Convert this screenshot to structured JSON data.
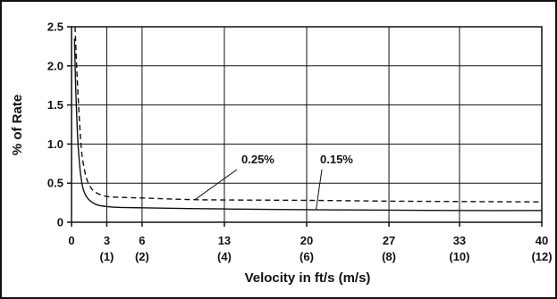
{
  "chart_data": {
    "type": "line",
    "title": "",
    "xlabel": "Velocity in ft/s (m/s)",
    "ylabel": "% of Rate",
    "xlim": [
      0,
      40
    ],
    "ylim": [
      0,
      2.5
    ],
    "grid": true,
    "x_ticks": [
      {
        "value": 0,
        "label": "0",
        "sublabel": ""
      },
      {
        "value": 3,
        "label": "3",
        "sublabel": "(1)"
      },
      {
        "value": 6,
        "label": "6",
        "sublabel": "(2)"
      },
      {
        "value": 13,
        "label": "13",
        "sublabel": "(4)"
      },
      {
        "value": 20,
        "label": "20",
        "sublabel": "(6)"
      },
      {
        "value": 27,
        "label": "27",
        "sublabel": "(8)"
      },
      {
        "value": 33,
        "label": "33",
        "sublabel": "(10)"
      },
      {
        "value": 40,
        "label": "40",
        "sublabel": "(12)"
      }
    ],
    "y_ticks": [
      {
        "value": 0,
        "label": "0"
      },
      {
        "value": 0.5,
        "label": "0.5"
      },
      {
        "value": 1.0,
        "label": "1.0"
      },
      {
        "value": 1.5,
        "label": "1.5"
      },
      {
        "value": 2.0,
        "label": "2.0"
      },
      {
        "value": 2.5,
        "label": "2.5"
      }
    ],
    "series": [
      {
        "name": "0.15%",
        "style": "solid",
        "color": "#111111",
        "x": [
          0.25,
          0.35,
          0.5,
          0.65,
          0.8,
          1.0,
          1.3,
          1.7,
          2.2,
          3,
          4,
          6,
          10,
          13,
          20,
          27,
          33,
          40
        ],
        "y": [
          2.35,
          1.75,
          1.15,
          0.8,
          0.58,
          0.42,
          0.32,
          0.26,
          0.22,
          0.2,
          0.19,
          0.185,
          0.175,
          0.17,
          0.16,
          0.155,
          0.15,
          0.15
        ]
      },
      {
        "name": "0.25%",
        "style": "dashed",
        "color": "#111111",
        "x": [
          0.3,
          0.45,
          0.6,
          0.8,
          1.0,
          1.3,
          1.7,
          2.2,
          3,
          4,
          6,
          10,
          13,
          20,
          27,
          33,
          40
        ],
        "y": [
          2.5,
          1.95,
          1.5,
          1.0,
          0.75,
          0.55,
          0.43,
          0.37,
          0.33,
          0.32,
          0.31,
          0.29,
          0.285,
          0.28,
          0.27,
          0.265,
          0.26
        ]
      }
    ],
    "annotations": [
      {
        "text": "0.25%",
        "points_to_series": "0.25%"
      },
      {
        "text": "0.15%",
        "points_to_series": "0.15%"
      }
    ]
  }
}
